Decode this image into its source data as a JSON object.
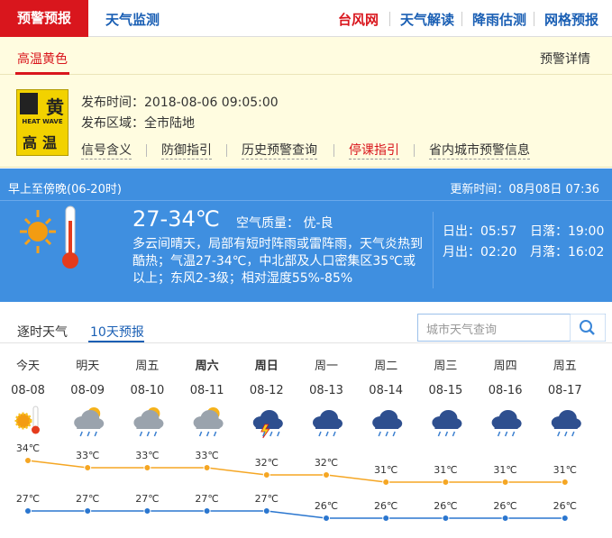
{
  "nav": {
    "active": "预警预报",
    "tab2": "天气监测",
    "links": [
      "台风网",
      "天气解读",
      "降雨估测",
      "网格预报"
    ]
  },
  "warning": {
    "tab": "高温黄色",
    "details": "预警详情",
    "icon": {
      "color": "黄",
      "english": "HEAT WAVE",
      "name": "高温"
    },
    "publish_time": "发布时间：2018-08-06 09:05:00",
    "area": "发布区域：全市陆地",
    "links": [
      "信号含义",
      "防御指引",
      "历史预警查询",
      "停课指引",
      "省内城市预警信息"
    ]
  },
  "today": {
    "period": "早上至傍晚(06-20时)",
    "updated": "更新时间：08月08日 07:36",
    "temp": "27-34℃",
    "air": "空气质量： 优-良",
    "description": "多云间晴天，局部有短时阵雨或雷阵雨，天气炎热到酷热；气温27-34℃，中北部及人口密集区35℃或以上；东风2-3级；相对湿度55%-85%",
    "sunrise": "日出：05:57",
    "sunset": "日落：19:00",
    "moonrise": "月出：02:20",
    "moonset": "月落：16:02"
  },
  "tabs": [
    "逐时天气",
    "10天预报"
  ],
  "search_placeholder": "城市天气查询",
  "forecast": {
    "days": [
      "今天",
      "明天",
      "周五",
      "周六",
      "周日",
      "周一",
      "周二",
      "周三",
      "周四",
      "周五"
    ],
    "dates": [
      "08-08",
      "08-09",
      "08-10",
      "08-11",
      "08-12",
      "08-13",
      "08-14",
      "08-15",
      "08-16",
      "08-17"
    ],
    "high": {
      "color": "#f5a623",
      "values": [
        34,
        33,
        33,
        33,
        32,
        32,
        31,
        31,
        31,
        31
      ],
      "value_labels": [
        "34℃",
        "33℃",
        "33℃",
        "33℃",
        "32℃",
        "32℃",
        "31℃",
        "31℃",
        "31℃",
        "31℃"
      ]
    },
    "low": {
      "color": "#2a76cf",
      "values": [
        27,
        27,
        27,
        27,
        27,
        26,
        26,
        26,
        26,
        26
      ],
      "value_labels": [
        "27℃",
        "27℃",
        "27℃",
        "27℃",
        "27℃",
        "26℃",
        "26℃",
        "26℃",
        "26℃",
        "26℃"
      ]
    }
  }
}
